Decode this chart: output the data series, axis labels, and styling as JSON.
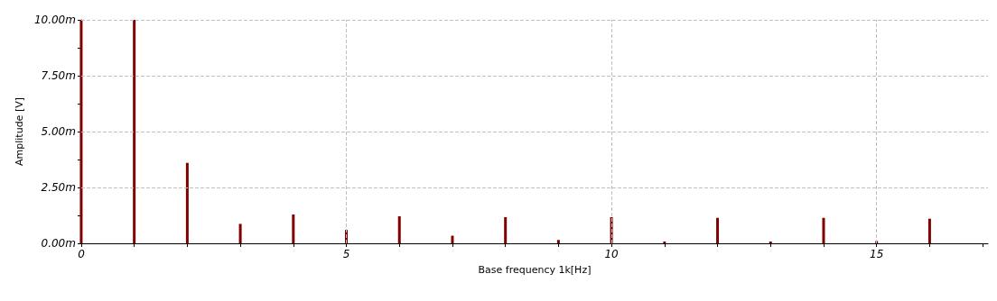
{
  "chart_data": {
    "type": "bar",
    "xlabel": "Base frequency 1k[Hz]",
    "ylabel": "Amplitude [V]",
    "x": [
      0,
      1,
      2,
      3,
      4,
      5,
      6,
      7,
      8,
      9,
      10,
      11,
      12,
      13,
      14,
      15,
      16
    ],
    "series": [
      {
        "color": "#800000",
        "values": [
          10,
          10,
          3.6,
          0.87,
          1.29,
          0.6,
          1.21,
          0.34,
          1.17,
          0.15,
          1.17,
          0.08,
          1.14,
          0.08,
          1.14,
          0.1,
          1.1
        ]
      }
    ],
    "xlim": [
      0,
      17.1
    ],
    "xticks": [
      0,
      {
        "value": 1,
        "label": null
      },
      {
        "value": 2,
        "label": null
      },
      {
        "value": 3,
        "label": null
      },
      {
        "value": 4,
        "label": null
      },
      5,
      {
        "value": 6,
        "label": null
      },
      {
        "value": 7,
        "label": null
      },
      {
        "value": 8,
        "label": null
      },
      {
        "value": 9,
        "label": null
      },
      10,
      {
        "value": 11,
        "label": null
      },
      {
        "value": 12,
        "label": null
      },
      {
        "value": 13,
        "label": null
      },
      {
        "value": 14,
        "label": null
      },
      15,
      {
        "value": 16,
        "label": null
      },
      {
        "value": 17,
        "label": null
      }
    ],
    "ylim": [
      0,
      10
    ],
    "yticks": [
      {
        "value": 0,
        "label": "0.00m"
      },
      {
        "value": 1.25,
        "label": null
      },
      {
        "value": 2.5,
        "label": "2.50m"
      },
      {
        "value": 3.75,
        "label": null
      },
      {
        "value": 5,
        "label": "5.00m"
      },
      {
        "value": 6.25,
        "label": null
      },
      {
        "value": 7.5,
        "label": "7.50m"
      },
      {
        "value": 8.75,
        "label": null
      },
      {
        "value": 10,
        "label": "10.00m"
      }
    ],
    "grid": true
  }
}
